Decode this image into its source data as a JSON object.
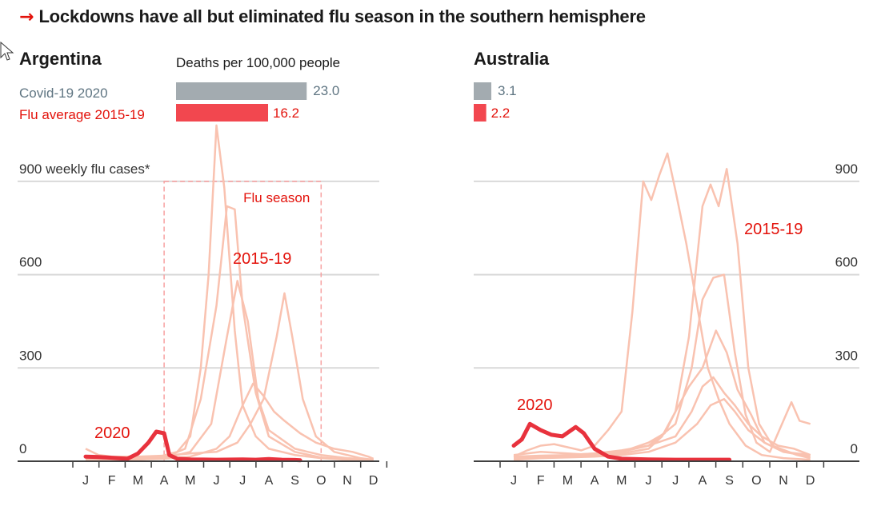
{
  "title": {
    "arrow": "→",
    "text": "Lockdowns have all but eliminated flu season in the southern hemisphere"
  },
  "colors": {
    "accent": "#e3120b",
    "covid_bar": "#a3abb0",
    "flu_bar": "#f2474f",
    "history_line": "#f9c2b0",
    "line_2020": "#e8323d",
    "grid": "#d9d9d9",
    "axis": "#404040"
  },
  "deaths_header": "Deaths per 100,000 people",
  "legend": {
    "covid": "Covid-19 2020",
    "flu": "Flu average 2015-19"
  },
  "flu_season_label": "Flu season",
  "cases_unit_label": "900 weekly flu cases*",
  "chart_data": [
    {
      "type": "line",
      "title": "Argentina",
      "deaths_per_100k": {
        "covid_2020": "23.0",
        "flu_avg_2015_19": "16.2"
      },
      "ylabel": "900 weekly flu cases*",
      "yticks": [
        "0",
        "300",
        "600",
        "900"
      ],
      "ylim": [
        0,
        1150
      ],
      "months": [
        "J",
        "F",
        "M",
        "A",
        "M",
        "J",
        "J",
        "A",
        "S",
        "O",
        "N",
        "D"
      ],
      "annotations": {
        "label_2020": "2020",
        "label_history": "2015-19",
        "flu_season": "Flu season"
      },
      "flu_season_months": [
        3,
        9
      ],
      "grid": true,
      "series": [
        {
          "name": "2020",
          "points": [
            [
              0,
              15
            ],
            [
              0.4,
              14
            ],
            [
              0.8,
              12
            ],
            [
              1.2,
              10
            ],
            [
              1.6,
              8
            ],
            [
              2.0,
              25
            ],
            [
              2.4,
              60
            ],
            [
              2.7,
              95
            ],
            [
              3.0,
              90
            ],
            [
              3.2,
              20
            ],
            [
              3.5,
              8
            ],
            [
              4.0,
              6
            ],
            [
              5.0,
              5
            ],
            [
              6.0,
              6
            ],
            [
              6.5,
              5
            ],
            [
              7.0,
              7
            ],
            [
              7.5,
              5
            ],
            [
              8.0,
              4
            ],
            [
              8.2,
              3
            ]
          ]
        },
        {
          "name": "",
          "points": [
            [
              0,
              10
            ],
            [
              1,
              8
            ],
            [
              2,
              10
            ],
            [
              2.8,
              15
            ],
            [
              3.5,
              30
            ],
            [
              4.0,
              80
            ],
            [
              4.4,
              300
            ],
            [
              4.7,
              600
            ],
            [
              5.0,
              1080
            ],
            [
              5.3,
              880
            ],
            [
              5.7,
              420
            ],
            [
              6.0,
              180
            ],
            [
              6.5,
              80
            ],
            [
              7.0,
              40
            ],
            [
              8.0,
              20
            ],
            [
              9.0,
              10
            ],
            [
              10.0,
              5
            ],
            [
              11.0,
              4
            ]
          ]
        },
        {
          "name": "",
          "points": [
            [
              0,
              8
            ],
            [
              1,
              6
            ],
            [
              2,
              8
            ],
            [
              3,
              12
            ],
            [
              3.8,
              40
            ],
            [
              4.4,
              200
            ],
            [
              5.0,
              500
            ],
            [
              5.4,
              820
            ],
            [
              5.7,
              810
            ],
            [
              6.0,
              500
            ],
            [
              6.5,
              220
            ],
            [
              7.0,
              80
            ],
            [
              8.0,
              30
            ],
            [
              9.0,
              12
            ],
            [
              10,
              6
            ],
            [
              11,
              4
            ]
          ]
        },
        {
          "name": "",
          "points": [
            [
              0,
              5
            ],
            [
              1,
              5
            ],
            [
              2,
              6
            ],
            [
              3,
              10
            ],
            [
              4,
              30
            ],
            [
              4.8,
              120
            ],
            [
              5.4,
              400
            ],
            [
              5.8,
              580
            ],
            [
              6.2,
              450
            ],
            [
              6.6,
              200
            ],
            [
              7.0,
              100
            ],
            [
              8.0,
              40
            ],
            [
              9.0,
              20
            ],
            [
              10,
              10
            ],
            [
              11,
              5
            ]
          ]
        },
        {
          "name": "",
          "points": [
            [
              0,
              40
            ],
            [
              0.5,
              20
            ],
            [
              1,
              15
            ],
            [
              2,
              15
            ],
            [
              3,
              18
            ],
            [
              4,
              25
            ],
            [
              5,
              30
            ],
            [
              5.8,
              60
            ],
            [
              6.3,
              120
            ],
            [
              6.8,
              200
            ],
            [
              7.3,
              400
            ],
            [
              7.6,
              540
            ],
            [
              7.9,
              400
            ],
            [
              8.3,
              200
            ],
            [
              8.8,
              80
            ],
            [
              9.5,
              30
            ],
            [
              10.5,
              10
            ],
            [
              11,
              5
            ]
          ]
        },
        {
          "name": "",
          "points": [
            [
              0,
              5
            ],
            [
              1,
              5
            ],
            [
              2,
              6
            ],
            [
              3,
              8
            ],
            [
              4,
              15
            ],
            [
              5,
              40
            ],
            [
              5.5,
              80
            ],
            [
              6.0,
              180
            ],
            [
              6.4,
              250
            ],
            [
              6.8,
              210
            ],
            [
              7.2,
              160
            ],
            [
              7.6,
              130
            ],
            [
              8.2,
              90
            ],
            [
              8.8,
              60
            ],
            [
              9.5,
              40
            ],
            [
              10.2,
              30
            ],
            [
              10.8,
              15
            ],
            [
              11,
              8
            ]
          ]
        }
      ]
    },
    {
      "type": "line",
      "title": "Australia",
      "deaths_per_100k": {
        "covid_2020": "3.1",
        "flu_avg_2015_19": "2.2"
      },
      "yticks": [
        "0",
        "300",
        "600",
        "900"
      ],
      "ylim": [
        0,
        1150
      ],
      "months": [
        "J",
        "F",
        "M",
        "A",
        "M",
        "J",
        "J",
        "A",
        "S",
        "O",
        "N",
        "D"
      ],
      "annotations": {
        "label_2020": "2020",
        "label_history": "2015-19"
      },
      "grid": true,
      "series": [
        {
          "name": "2020",
          "points": [
            [
              0,
              50
            ],
            [
              0.3,
              70
            ],
            [
              0.6,
              120
            ],
            [
              1.0,
              100
            ],
            [
              1.4,
              85
            ],
            [
              1.8,
              80
            ],
            [
              2.3,
              110
            ],
            [
              2.6,
              90
            ],
            [
              3.0,
              40
            ],
            [
              3.5,
              15
            ],
            [
              4.0,
              8
            ],
            [
              5.0,
              6
            ],
            [
              6.0,
              5
            ],
            [
              7.0,
              5
            ],
            [
              8.0,
              5
            ]
          ]
        },
        {
          "name": "",
          "points": [
            [
              0,
              15
            ],
            [
              0.5,
              35
            ],
            [
              1,
              50
            ],
            [
              1.5,
              55
            ],
            [
              2,
              45
            ],
            [
              2.5,
              35
            ],
            [
              3,
              50
            ],
            [
              3.5,
              100
            ],
            [
              4,
              160
            ],
            [
              4.4,
              480
            ],
            [
              4.8,
              900
            ],
            [
              5.1,
              840
            ],
            [
              5.4,
              920
            ],
            [
              5.7,
              990
            ],
            [
              6.0,
              870
            ],
            [
              6.4,
              700
            ],
            [
              6.8,
              500
            ],
            [
              7.2,
              300
            ],
            [
              7.6,
              200
            ],
            [
              8.0,
              120
            ],
            [
              8.6,
              50
            ],
            [
              9.2,
              20
            ],
            [
              10,
              10
            ],
            [
              11,
              5
            ]
          ]
        },
        {
          "name": "",
          "points": [
            [
              0,
              20
            ],
            [
              1,
              30
            ],
            [
              2,
              25
            ],
            [
              3,
              20
            ],
            [
              4,
              25
            ],
            [
              5,
              40
            ],
            [
              5.5,
              80
            ],
            [
              6.0,
              160
            ],
            [
              6.5,
              400
            ],
            [
              7.0,
              820
            ],
            [
              7.3,
              890
            ],
            [
              7.6,
              820
            ],
            [
              7.9,
              940
            ],
            [
              8.3,
              700
            ],
            [
              8.7,
              300
            ],
            [
              9.1,
              120
            ],
            [
              9.6,
              50
            ],
            [
              10.5,
              20
            ],
            [
              11,
              10
            ]
          ]
        },
        {
          "name": "",
          "points": [
            [
              0,
              10
            ],
            [
              1,
              12
            ],
            [
              2,
              15
            ],
            [
              3,
              20
            ],
            [
              4,
              30
            ],
            [
              5,
              50
            ],
            [
              6.0,
              120
            ],
            [
              6.6,
              300
            ],
            [
              7.0,
              520
            ],
            [
              7.4,
              590
            ],
            [
              7.8,
              600
            ],
            [
              8.2,
              350
            ],
            [
              8.6,
              150
            ],
            [
              9.0,
              60
            ],
            [
              9.5,
              30
            ],
            [
              10.3,
              190
            ],
            [
              10.6,
              130
            ],
            [
              11,
              120
            ]
          ]
        },
        {
          "name": "",
          "points": [
            [
              0,
              15
            ],
            [
              1,
              18
            ],
            [
              2,
              20
            ],
            [
              3,
              25
            ],
            [
              4,
              30
            ],
            [
              5,
              60
            ],
            [
              5.6,
              90
            ],
            [
              6.0,
              160
            ],
            [
              6.5,
              240
            ],
            [
              7.0,
              300
            ],
            [
              7.5,
              420
            ],
            [
              7.9,
              350
            ],
            [
              8.3,
              230
            ],
            [
              8.8,
              150
            ],
            [
              9.3,
              60
            ],
            [
              10,
              30
            ],
            [
              10.5,
              25
            ],
            [
              11,
              20
            ]
          ]
        },
        {
          "name": "",
          "points": [
            [
              0,
              10
            ],
            [
              1,
              15
            ],
            [
              2,
              20
            ],
            [
              3,
              25
            ],
            [
              4,
              35
            ],
            [
              5,
              50
            ],
            [
              6.0,
              80
            ],
            [
              6.6,
              160
            ],
            [
              7.0,
              240
            ],
            [
              7.4,
              270
            ],
            [
              7.8,
              220
            ],
            [
              8.2,
              180
            ],
            [
              8.7,
              120
            ],
            [
              9.2,
              80
            ],
            [
              9.8,
              50
            ],
            [
              10.4,
              40
            ],
            [
              11,
              20
            ]
          ]
        },
        {
          "name": "",
          "points": [
            [
              0,
              5
            ],
            [
              1,
              10
            ],
            [
              2,
              12
            ],
            [
              3,
              15
            ],
            [
              4,
              20
            ],
            [
              5,
              30
            ],
            [
              6.0,
              60
            ],
            [
              6.8,
              120
            ],
            [
              7.3,
              180
            ],
            [
              7.8,
              200
            ],
            [
              8.2,
              160
            ],
            [
              8.7,
              100
            ],
            [
              9.3,
              60
            ],
            [
              10,
              30
            ],
            [
              11,
              15
            ]
          ]
        }
      ]
    }
  ]
}
